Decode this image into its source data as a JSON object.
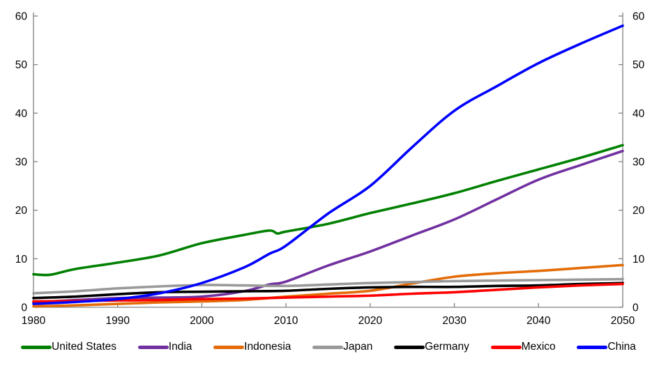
{
  "chart_data": {
    "type": "line",
    "title": "",
    "xlabel": "",
    "ylabel": "",
    "grid": false,
    "legend_position": "bottom",
    "axis_color": "#808080",
    "tick_label_color": "#000000",
    "tick_font_size": 15.5,
    "x_axis": {
      "min": 1980,
      "max": 2050,
      "ticks": [
        1980,
        1990,
        2000,
        2010,
        2020,
        2030,
        2040,
        2050
      ]
    },
    "y_axis_left": {
      "min": 0,
      "max": 60,
      "ticks": [
        0,
        10,
        20,
        30,
        40,
        50,
        60
      ]
    },
    "y_axis_right": {
      "min": 0,
      "max": 60,
      "ticks": [
        0,
        10,
        20,
        30,
        40,
        50,
        60
      ]
    },
    "series": [
      {
        "name": "United States",
        "color": "#008000",
        "points": [
          [
            1980,
            6.8
          ],
          [
            1982,
            6.7
          ],
          [
            1985,
            7.9
          ],
          [
            1990,
            9.2
          ],
          [
            1995,
            10.7
          ],
          [
            2000,
            13.2
          ],
          [
            2005,
            14.9
          ],
          [
            2008,
            15.8
          ],
          [
            2009,
            15.2
          ],
          [
            2010,
            15.6
          ],
          [
            2015,
            17.2
          ],
          [
            2020,
            19.4
          ],
          [
            2025,
            21.4
          ],
          [
            2030,
            23.5
          ],
          [
            2035,
            26.0
          ],
          [
            2040,
            28.4
          ],
          [
            2045,
            30.8
          ],
          [
            2050,
            33.4
          ]
        ]
      },
      {
        "name": "India",
        "color": "#7030A0",
        "points": [
          [
            1980,
            1.0
          ],
          [
            1985,
            1.5
          ],
          [
            1990,
            1.9
          ],
          [
            1995,
            2.0
          ],
          [
            2000,
            2.2
          ],
          [
            2005,
            3.3
          ],
          [
            2008,
            4.7
          ],
          [
            2010,
            5.3
          ],
          [
            2015,
            8.6
          ],
          [
            2020,
            11.5
          ],
          [
            2025,
            14.8
          ],
          [
            2030,
            18.1
          ],
          [
            2035,
            22.2
          ],
          [
            2040,
            26.3
          ],
          [
            2045,
            29.3
          ],
          [
            2050,
            32.2
          ]
        ]
      },
      {
        "name": "Indonesia",
        "color": "#E36C09",
        "points": [
          [
            1980,
            0.2
          ],
          [
            1985,
            0.4
          ],
          [
            1990,
            0.7
          ],
          [
            1995,
            1.0
          ],
          [
            2000,
            1.2
          ],
          [
            2005,
            1.5
          ],
          [
            2010,
            2.2
          ],
          [
            2015,
            2.8
          ],
          [
            2020,
            3.4
          ],
          [
            2025,
            4.9
          ],
          [
            2030,
            6.3
          ],
          [
            2035,
            7.0
          ],
          [
            2040,
            7.5
          ],
          [
            2045,
            8.1
          ],
          [
            2050,
            8.7
          ]
        ]
      },
      {
        "name": "Japan",
        "color": "#999999",
        "points": [
          [
            1980,
            2.9
          ],
          [
            1985,
            3.3
          ],
          [
            1990,
            3.9
          ],
          [
            1995,
            4.3
          ],
          [
            2000,
            4.6
          ],
          [
            2005,
            4.5
          ],
          [
            2010,
            4.4
          ],
          [
            2015,
            4.7
          ],
          [
            2020,
            5.0
          ],
          [
            2025,
            5.2
          ],
          [
            2030,
            5.4
          ],
          [
            2035,
            5.5
          ],
          [
            2040,
            5.6
          ],
          [
            2045,
            5.7
          ],
          [
            2050,
            5.8
          ]
        ]
      },
      {
        "name": "Germany",
        "color": "#000000",
        "points": [
          [
            1980,
            1.9
          ],
          [
            1985,
            2.2
          ],
          [
            1990,
            2.7
          ],
          [
            1995,
            3.1
          ],
          [
            2000,
            3.2
          ],
          [
            2005,
            3.3
          ],
          [
            2010,
            3.4
          ],
          [
            2015,
            3.8
          ],
          [
            2020,
            4.1
          ],
          [
            2025,
            4.2
          ],
          [
            2030,
            4.2
          ],
          [
            2035,
            4.4
          ],
          [
            2040,
            4.5
          ],
          [
            2045,
            4.8
          ],
          [
            2050,
            5.0
          ]
        ]
      },
      {
        "name": "Mexico",
        "color": "#FF0000",
        "points": [
          [
            1980,
            1.2
          ],
          [
            1985,
            1.3
          ],
          [
            1990,
            1.4
          ],
          [
            1995,
            1.5
          ],
          [
            2000,
            1.7
          ],
          [
            2005,
            1.8
          ],
          [
            2010,
            2.0
          ],
          [
            2015,
            2.2
          ],
          [
            2020,
            2.4
          ],
          [
            2025,
            2.8
          ],
          [
            2030,
            3.1
          ],
          [
            2035,
            3.6
          ],
          [
            2040,
            4.1
          ],
          [
            2045,
            4.5
          ],
          [
            2050,
            4.8
          ]
        ]
      },
      {
        "name": "China",
        "color": "#0000FF",
        "points": [
          [
            1980,
            0.7
          ],
          [
            1985,
            1.1
          ],
          [
            1990,
            1.7
          ],
          [
            1995,
            2.9
          ],
          [
            2000,
            5.0
          ],
          [
            2005,
            8.2
          ],
          [
            2008,
            11.0
          ],
          [
            2010,
            12.7
          ],
          [
            2015,
            19.3
          ],
          [
            2020,
            25.0
          ],
          [
            2025,
            33.0
          ],
          [
            2030,
            40.5
          ],
          [
            2035,
            45.5
          ],
          [
            2040,
            50.3
          ],
          [
            2045,
            54.3
          ],
          [
            2050,
            58.0
          ]
        ]
      }
    ]
  }
}
